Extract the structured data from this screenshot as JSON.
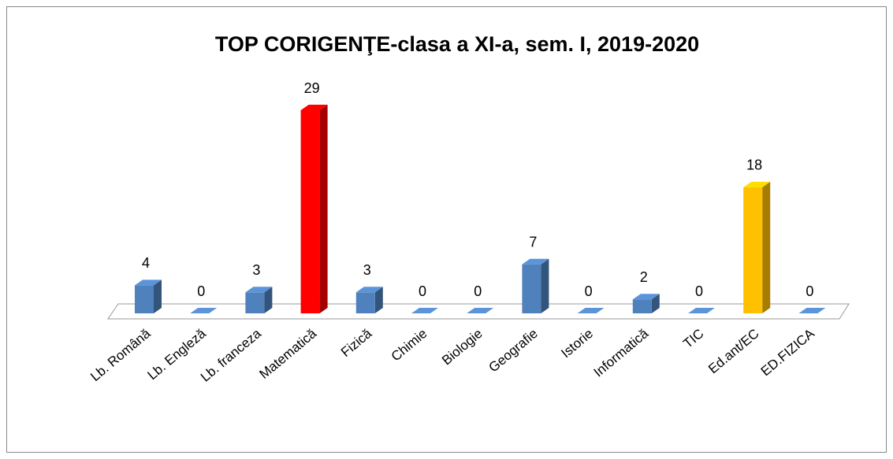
{
  "chart_data": {
    "type": "bar3d",
    "title": "TOP CORIGENŢE-clasa a XI-a, sem. I, 2019-2020",
    "categories": [
      "Lb. Română",
      "Lb. Engleză",
      "Lb. franceza",
      "Matematică",
      "Fizică",
      "Chimie",
      "Biologie",
      "Geografie",
      "Istorie",
      "Informatică",
      "TIC",
      "Ed.ant/EC",
      "ED.FIZICA"
    ],
    "values": [
      4,
      0,
      3,
      29,
      3,
      0,
      0,
      7,
      0,
      2,
      0,
      18,
      0
    ],
    "colors": [
      "#4f81bd",
      "#4f81bd",
      "#4f81bd",
      "#ff0000",
      "#4f81bd",
      "#4f81bd",
      "#4f81bd",
      "#4f81bd",
      "#4f81bd",
      "#4f81bd",
      "#4f81bd",
      "#ffc000",
      "#4f81bd"
    ]
  }
}
